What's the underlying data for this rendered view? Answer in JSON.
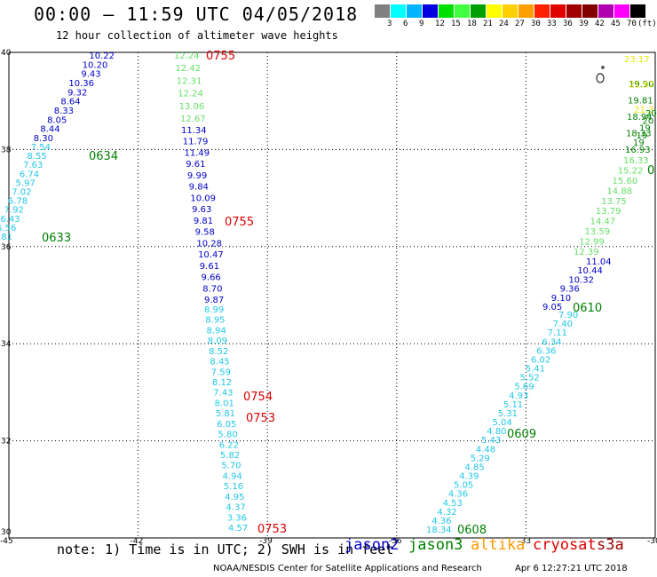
{
  "header": {
    "title": "00:00 – 11:59 UTC 04/05/2018",
    "subtitle": "12 hour collection of altimeter wave heights"
  },
  "legend": {
    "unit": "(ft)",
    "bins": [
      {
        "label": "3",
        "color": "#808080"
      },
      {
        "label": "6",
        "color": "#00ffff"
      },
      {
        "label": "9",
        "color": "#00b4ff"
      },
      {
        "label": "12",
        "color": "#0000e0"
      },
      {
        "label": "15",
        "color": "#00e000"
      },
      {
        "label": "18",
        "color": "#40ff40"
      },
      {
        "label": "21",
        "color": "#00a000"
      },
      {
        "label": "24",
        "color": "#ffff00"
      },
      {
        "label": "27",
        "color": "#ffd000"
      },
      {
        "label": "30",
        "color": "#ffa000"
      },
      {
        "label": "33",
        "color": "#ff2000"
      },
      {
        "label": "36",
        "color": "#e00000"
      },
      {
        "label": "39",
        "color": "#a00000"
      },
      {
        "label": "42",
        "color": "#800000"
      },
      {
        "label": "45",
        "color": "#b000b0"
      },
      {
        "label": "70",
        "color": "#ff00ff"
      },
      {
        "label": "",
        "color": "#000000"
      }
    ]
  },
  "axes": {
    "x_ticks": [
      "-45",
      "-42",
      "-39",
      "-36",
      "-33",
      "-30"
    ],
    "y_ticks": [
      "40",
      "38",
      "36",
      "34",
      "32",
      "30"
    ],
    "x_range": [
      -45,
      -30
    ],
    "y_range": [
      30,
      40
    ]
  },
  "colors": {
    "jason2": "#0000c8",
    "jason3": "#008000",
    "altika": "#ff9900",
    "cryosat": "#dd0000",
    "s3a": "#990000",
    "light_green": "#66e066",
    "cyan": "#22c8e8",
    "yellow": "#e8e800"
  },
  "tracks": [
    {
      "name": "jason2-west",
      "color": "#0000c8",
      "values": [
        "10.22",
        "10.20",
        "9.43",
        "10.36",
        "9.32",
        "8.64",
        "8.33",
        "8.05",
        "8.44",
        "8.30"
      ]
    },
    {
      "name": "cyan-west",
      "color": "#22c8e8",
      "values": [
        "7.54",
        "8.55",
        "7.63",
        "6.74",
        "5.97",
        "7.02",
        "6.78",
        "7.92",
        "6.43",
        "6.56",
        "5.81"
      ]
    },
    {
      "name": "jason3-upper",
      "color": "#66e066",
      "values": [
        "12.24",
        "12.42",
        "12.31",
        "12.24",
        "13.06",
        "12.67"
      ]
    },
    {
      "name": "jason2-middle",
      "color": "#0000c8",
      "values": [
        "11.34",
        "11.79",
        "11.49",
        "9.61",
        "9.99",
        "9.84",
        "10.09",
        "9.63",
        "9.81",
        "9.58",
        "10.28",
        "10.47",
        "9.61",
        "9.66",
        "8.70",
        "9.87"
      ]
    },
    {
      "name": "cyan-middle",
      "color": "#22c8e8",
      "values": [
        "8.99",
        "8.95",
        "8.94",
        "8.09",
        "8.52",
        "8.45",
        "7.59",
        "8.12",
        "7.43",
        "8.01",
        "5.81",
        "6.05",
        "5.80",
        "6.22",
        "5.82",
        "5.70",
        "4.94",
        "5.16",
        "4.95",
        "4.37",
        "3.36",
        "4.57"
      ]
    },
    {
      "name": "cyan-east",
      "color": "#22c8e8",
      "values": [
        "18.34",
        "4.36",
        "4.32",
        "4.53",
        "4.36",
        "5.05",
        "4.39",
        "4.85",
        "5.29",
        "4.48",
        "5.43",
        "4.80",
        "5.04",
        "5.31",
        "5.11",
        "4.93",
        "5.69",
        "5.52",
        "5.41",
        "6.02",
        "6.36",
        "6.34",
        "7.11",
        "7.40",
        "7.90"
      ]
    },
    {
      "name": "jason2-east",
      "color": "#0000c8",
      "values": [
        "9.05",
        "9.10",
        "9.36",
        "10.32",
        "10.44",
        "11.04"
      ]
    },
    {
      "name": "green-east",
      "color": "#66e066",
      "values": [
        "12.39",
        "12.99",
        "13.59",
        "14.47",
        "13.79",
        "13.75",
        "14.88",
        "15.60",
        "15.22",
        "16.33"
      ]
    },
    {
      "name": "jason3-east",
      "color": "#008000",
      "values": [
        "16.93",
        "18.33",
        "18.94",
        "19.81",
        "19.90"
      ]
    },
    {
      "name": "yellow-east",
      "color": "#e8e800",
      "values": [
        "23.17",
        "21.97",
        "21.3"
      ]
    },
    {
      "name": "clipped-east",
      "color": "#008000",
      "values": [
        "20",
        "20",
        "19",
        "19",
        "19"
      ]
    }
  ],
  "time_labels": [
    {
      "text": "0755",
      "color": "#dd0000"
    },
    {
      "text": "0634",
      "color": "#008000"
    },
    {
      "text": "0633",
      "color": "#008000"
    },
    {
      "text": "0755",
      "color": "#dd0000"
    },
    {
      "text": "0754",
      "color": "#dd0000"
    },
    {
      "text": "0753",
      "color": "#dd0000"
    },
    {
      "text": "0753",
      "color": "#dd0000"
    },
    {
      "text": "0610",
      "color": "#008000"
    },
    {
      "text": "0609",
      "color": "#008000"
    },
    {
      "text": "0608",
      "color": "#008000"
    },
    {
      "text": "0",
      "color": "#008000"
    }
  ],
  "footer": {
    "note": "note: 1) Time is in UTC; 2) SWH is in feet",
    "satellites": [
      "jason2",
      "jason3",
      "altika",
      "cryosat",
      "s3a"
    ],
    "credit": "NOAA/NESDIS Center for Satellite Applications and Research",
    "timestamp": "Apr  6 12:27:21 UTC 2018"
  }
}
